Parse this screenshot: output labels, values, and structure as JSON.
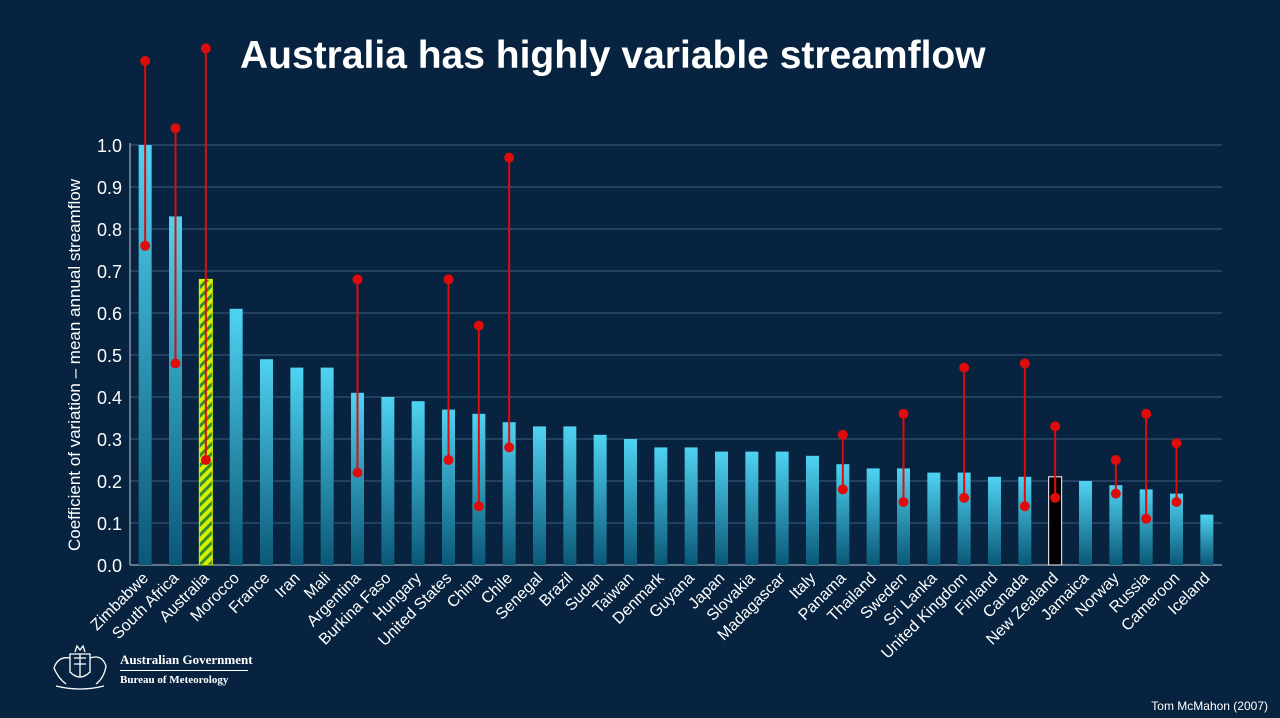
{
  "chart_data": {
    "type": "bar",
    "title": "Australia has highly variable streamflow",
    "ylabel": "Coefficient of variation – mean annual streamflow",
    "xlabel": "",
    "ylim": [
      0,
      1.0
    ],
    "yticks": [
      "0.0",
      "0.1",
      "0.2",
      "0.3",
      "0.4",
      "0.5",
      "0.6",
      "0.7",
      "0.8",
      "0.9",
      "1.0"
    ],
    "grid": true,
    "categories": [
      "Zimbabwe",
      "South Africa",
      "Australia",
      "Morocco",
      "France",
      "Iran",
      "Mali",
      "Argentina",
      "Burkina Faso",
      "Hungary",
      "United States",
      "China",
      "Chile",
      "Senegal",
      "Brazil",
      "Sudan",
      "Taiwan",
      "Denmark",
      "Guyana",
      "Japan",
      "Slovakia",
      "Madagascar",
      "Italy",
      "Panama",
      "Thailand",
      "Sweden",
      "Sri Lanka",
      "United Kingdom",
      "Finland",
      "Canada",
      "New Zealand",
      "Jamaica",
      "Norway",
      "Russia",
      "Cameroon",
      "Iceland"
    ],
    "values": [
      1.0,
      0.83,
      0.68,
      0.61,
      0.49,
      0.47,
      0.47,
      0.41,
      0.4,
      0.39,
      0.37,
      0.36,
      0.34,
      0.33,
      0.33,
      0.31,
      0.3,
      0.28,
      0.28,
      0.27,
      0.27,
      0.27,
      0.26,
      0.24,
      0.23,
      0.23,
      0.22,
      0.22,
      0.21,
      0.21,
      0.21,
      0.2,
      0.19,
      0.18,
      0.17,
      0.12
    ],
    "ranges": [
      {
        "category": "Zimbabwe",
        "low": 0.76,
        "high": 1.2
      },
      {
        "category": "South Africa",
        "low": 0.48,
        "high": 1.04
      },
      {
        "category": "Australia",
        "low": 0.25,
        "high": 1.23
      },
      {
        "category": "Argentina",
        "low": 0.22,
        "high": 0.68
      },
      {
        "category": "United States",
        "low": 0.25,
        "high": 0.68
      },
      {
        "category": "China",
        "low": 0.14,
        "high": 0.57
      },
      {
        "category": "Chile",
        "low": 0.28,
        "high": 0.97
      },
      {
        "category": "Panama",
        "low": 0.18,
        "high": 0.31
      },
      {
        "category": "Sweden",
        "low": 0.15,
        "high": 0.36
      },
      {
        "category": "United Kingdom",
        "low": 0.16,
        "high": 0.47
      },
      {
        "category": "Canada",
        "low": 0.14,
        "high": 0.48
      },
      {
        "category": "New Zealand",
        "low": 0.16,
        "high": 0.33
      },
      {
        "category": "Norway",
        "low": 0.17,
        "high": 0.25
      },
      {
        "category": "Russia",
        "low": 0.11,
        "high": 0.36
      },
      {
        "category": "Cameroon",
        "low": 0.15,
        "high": 0.29
      }
    ],
    "highlighted": {
      "Australia": "yellow-green hatched",
      "New Zealand": "black"
    }
  },
  "colors": {
    "background": "#07233f",
    "bar_top": "#4fd3f2",
    "bar_bottom": "#0b5877",
    "range": "#e00b0b",
    "grid": "#3d5f80",
    "australia": "#d8f000",
    "australia_hatch": "#2f8f2f",
    "new_zealand": "#000000"
  },
  "logo": {
    "government": "Australian Government",
    "bureau": "Bureau of Meteorology"
  },
  "credit": "Tom McMahon (2007)"
}
